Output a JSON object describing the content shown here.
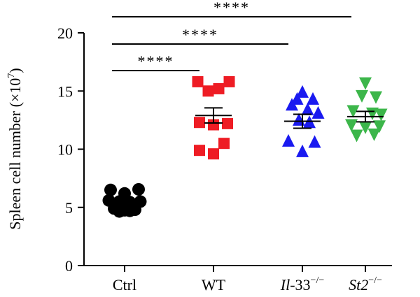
{
  "chart_data": {
    "type": "scatter",
    "ylabel": "Spleen cell number (×10",
    "ylabel_exp": "7",
    "ylabel_close": ")",
    "ylim": [
      0,
      20
    ],
    "yticks": [
      {
        "value": 0,
        "label": "0"
      },
      {
        "value": 5,
        "label": "5"
      },
      {
        "value": 10,
        "label": "10"
      },
      {
        "value": 15,
        "label": "15"
      },
      {
        "value": 20,
        "label": "20"
      }
    ],
    "groups": [
      {
        "name": "Ctrl",
        "label_parts": [
          {
            "t": "Ctrl",
            "italic": false,
            "sup": false
          }
        ],
        "marker": "circle",
        "color": "#000000",
        "mean": 5.45,
        "sem": 0.22,
        "points": [
          {
            "dx": -0.4,
            "y": 6.5
          },
          {
            "dx": 0.0,
            "y": 6.2
          },
          {
            "dx": 0.4,
            "y": 6.55
          },
          {
            "dx": -0.45,
            "y": 5.6
          },
          {
            "dx": -0.15,
            "y": 5.5
          },
          {
            "dx": 0.15,
            "y": 5.45
          },
          {
            "dx": 0.45,
            "y": 5.5
          },
          {
            "dx": -0.3,
            "y": 4.9
          },
          {
            "dx": 0.0,
            "y": 4.75
          },
          {
            "dx": 0.3,
            "y": 4.8
          },
          {
            "dx": -0.15,
            "y": 4.65
          },
          {
            "dx": 0.15,
            "y": 4.7
          }
        ]
      },
      {
        "name": "WT",
        "label_parts": [
          {
            "t": "WT",
            "italic": false,
            "sup": false
          }
        ],
        "marker": "square",
        "color": "#ee1c24",
        "mean": 12.9,
        "sem": 0.65,
        "points": [
          {
            "dx": -0.45,
            "y": 15.8
          },
          {
            "dx": 0.45,
            "y": 15.8
          },
          {
            "dx": -0.15,
            "y": 15.0
          },
          {
            "dx": 0.15,
            "y": 15.2
          },
          {
            "dx": -0.4,
            "y": 12.3
          },
          {
            "dx": 0.4,
            "y": 12.2
          },
          {
            "dx": 0.0,
            "y": 12.1
          },
          {
            "dx": 0.3,
            "y": 10.5
          },
          {
            "dx": -0.4,
            "y": 9.9
          },
          {
            "dx": 0.0,
            "y": 9.6
          }
        ]
      },
      {
        "name": "Il-33-/-",
        "label_parts": [
          {
            "t": "Il",
            "italic": true,
            "sup": false
          },
          {
            "t": "-33",
            "italic": false,
            "sup": false
          },
          {
            "t": "−/−",
            "italic": false,
            "sup": true
          }
        ],
        "marker": "triangle-up",
        "color": "#1a1af0",
        "mean": 12.4,
        "sem": 0.6,
        "points": [
          {
            "dx": 0.0,
            "y": 14.9
          },
          {
            "dx": -0.15,
            "y": 14.3
          },
          {
            "dx": 0.3,
            "y": 14.3
          },
          {
            "dx": -0.3,
            "y": 13.8
          },
          {
            "dx": 0.15,
            "y": 13.4
          },
          {
            "dx": 0.45,
            "y": 13.1
          },
          {
            "dx": -0.1,
            "y": 12.5
          },
          {
            "dx": 0.2,
            "y": 12.3
          },
          {
            "dx": -0.4,
            "y": 10.7
          },
          {
            "dx": 0.35,
            "y": 10.6
          },
          {
            "dx": 0.0,
            "y": 9.8
          }
        ]
      },
      {
        "name": "St2-/-",
        "label_parts": [
          {
            "t": "St2",
            "italic": true,
            "sup": false
          },
          {
            "t": "−/−",
            "italic": false,
            "sup": true
          }
        ],
        "marker": "triangle-down",
        "color": "#3cb64a",
        "mean": 12.8,
        "sem": 0.45,
        "points": [
          {
            "dx": 0.0,
            "y": 15.7
          },
          {
            "dx": -0.1,
            "y": 14.6
          },
          {
            "dx": 0.3,
            "y": 14.5
          },
          {
            "dx": -0.35,
            "y": 13.3
          },
          {
            "dx": 0.2,
            "y": 13.1
          },
          {
            "dx": 0.45,
            "y": 13.0
          },
          {
            "dx": -0.4,
            "y": 12.1
          },
          {
            "dx": 0.0,
            "y": 11.9
          },
          {
            "dx": 0.4,
            "y": 12.0
          },
          {
            "dx": -0.25,
            "y": 11.2
          },
          {
            "dx": 0.25,
            "y": 11.3
          }
        ]
      }
    ],
    "significance": [
      {
        "from": 0,
        "to": 1,
        "label": "****"
      },
      {
        "from": 0,
        "to": 2,
        "label": "****"
      },
      {
        "from": 0,
        "to": 3,
        "label": "****"
      }
    ]
  }
}
